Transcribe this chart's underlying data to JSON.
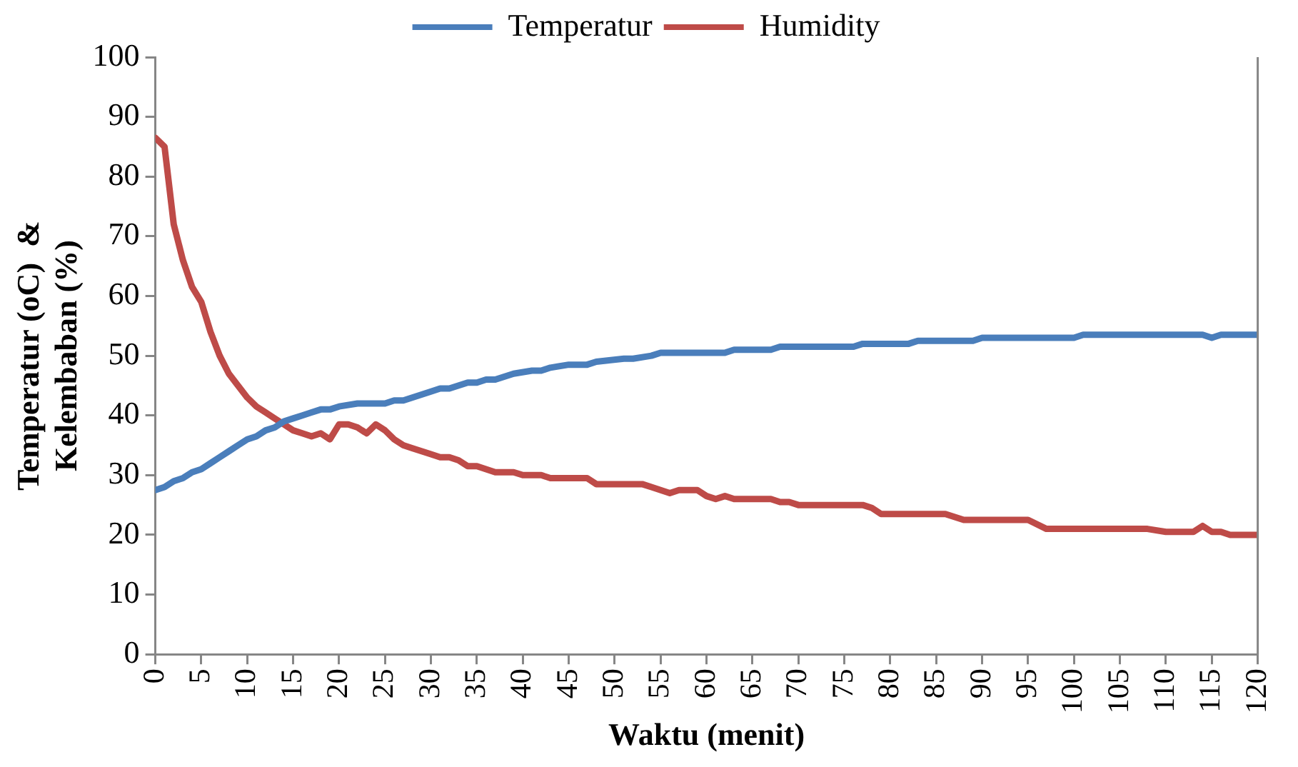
{
  "chart_data": {
    "type": "line",
    "xlabel": "Waktu (menit)",
    "ylabel": "Temperatur (oC)  &\nKelembaban (%)",
    "xlim": [
      0,
      120
    ],
    "xticks": [
      0,
      5,
      10,
      15,
      20,
      25,
      30,
      35,
      40,
      45,
      50,
      55,
      60,
      65,
      70,
      75,
      80,
      85,
      90,
      95,
      100,
      105,
      110,
      115,
      120
    ],
    "ylim": [
      0,
      100
    ],
    "yticks": [
      0,
      10,
      20,
      30,
      40,
      50,
      60,
      70,
      80,
      90,
      100
    ],
    "grid": false,
    "legend": "top",
    "marker": "none",
    "line_style": "solid",
    "series": [
      {
        "name": "Temperatur",
        "color": "#4a7ebb",
        "x": [
          0,
          1,
          2,
          3,
          4,
          5,
          6,
          7,
          8,
          9,
          10,
          11,
          12,
          13,
          14,
          15,
          16,
          17,
          18,
          19,
          20,
          22,
          25,
          26,
          27,
          30,
          31,
          32,
          34,
          35,
          36,
          37,
          39,
          41,
          42,
          43,
          45,
          47,
          48,
          51,
          52,
          54,
          55,
          62,
          63,
          67,
          68,
          76,
          77,
          82,
          83,
          89,
          90,
          100,
          101,
          114,
          115,
          116,
          120
        ],
        "values": [
          27.5,
          28,
          29,
          29.5,
          30.5,
          31,
          32,
          33,
          34,
          35,
          36,
          36.5,
          37.5,
          38,
          39,
          39.5,
          40,
          40.5,
          41,
          41,
          41.5,
          42,
          42,
          42.5,
          42.5,
          44,
          44.5,
          44.5,
          45.5,
          45.5,
          46,
          46,
          47,
          47.5,
          47.5,
          48,
          48.5,
          48.5,
          49,
          49.5,
          49.5,
          50,
          50.5,
          50.5,
          51,
          51,
          51.5,
          51.5,
          52,
          52,
          52.5,
          52.5,
          53,
          53,
          53.5,
          53.5,
          53,
          53.5,
          53.5
        ]
      },
      {
        "name": "Humidity",
        "color": "#be4b48",
        "x": [
          0,
          1,
          2,
          3,
          4,
          5,
          6,
          7,
          8,
          9,
          10,
          11,
          12,
          13,
          14,
          15,
          16,
          17,
          18,
          19,
          20,
          21,
          22,
          23,
          24,
          25,
          26,
          27,
          28,
          30,
          31,
          32,
          33,
          34,
          35,
          36,
          37,
          39,
          40,
          42,
          43,
          47,
          48,
          53,
          54,
          56,
          57,
          59,
          60,
          61,
          62,
          63,
          67,
          68,
          69,
          70,
          77,
          78,
          79,
          86,
          88,
          95,
          97,
          106,
          108,
          110,
          113,
          114,
          115,
          116,
          117,
          120
        ],
        "values": [
          86.5,
          85,
          72,
          66,
          61.5,
          59,
          54,
          50,
          47,
          45,
          43,
          41.5,
          40.5,
          39.5,
          38.5,
          37.5,
          37,
          36.5,
          37,
          36,
          38.5,
          38.5,
          38,
          37,
          38.5,
          37.5,
          36,
          35,
          34.5,
          33.5,
          33,
          33,
          32.5,
          31.5,
          31.5,
          31,
          30.5,
          30.5,
          30,
          30,
          29.5,
          29.5,
          28.5,
          28.5,
          28,
          27,
          27.5,
          27.5,
          26.5,
          26,
          26.5,
          26,
          26,
          25.5,
          25.5,
          25,
          25,
          24.5,
          23.5,
          23.5,
          22.5,
          22.5,
          21,
          21,
          21,
          20.5,
          20.5,
          21.5,
          20.5,
          20.5,
          20,
          20
        ]
      }
    ]
  }
}
